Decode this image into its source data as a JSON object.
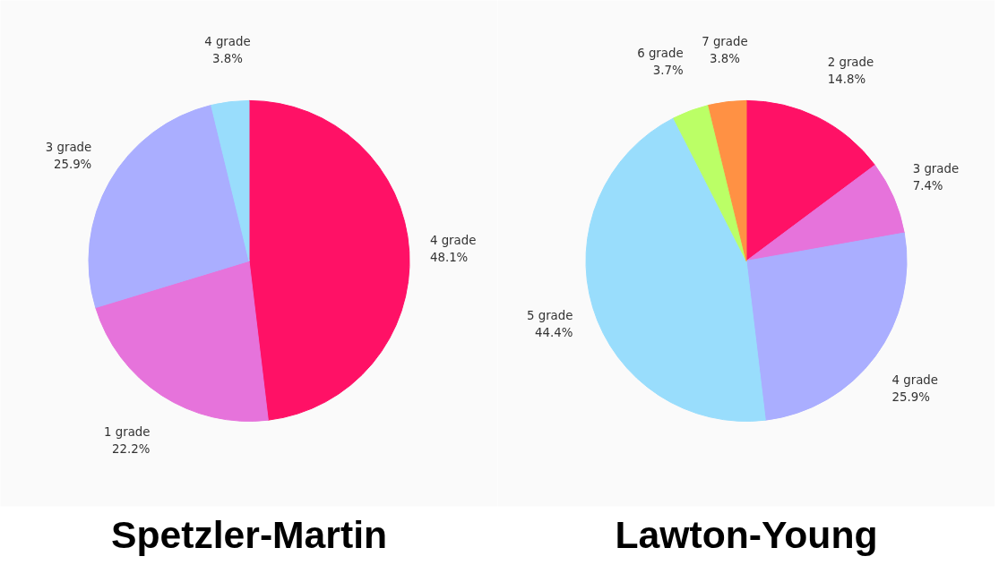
{
  "chart_data": [
    {
      "type": "pie",
      "title": "Spetzler-Martin",
      "categories": [
        "4 grade",
        "1 grade",
        "3 grade",
        "4 grade"
      ],
      "values": [
        48.1,
        22.2,
        25.9,
        3.8
      ],
      "colors": [
        "#ff1166",
        "#e673db",
        "#aaaeff",
        "#99ddfc"
      ],
      "value_labels": [
        "48.1%",
        "22.2%",
        "25.9%",
        "3.8%"
      ]
    },
    {
      "type": "pie",
      "title": "Lawton-Young",
      "categories": [
        "2 grade",
        "3 grade",
        "4 grade",
        "5 grade",
        "6 grade",
        "7 grade"
      ],
      "values": [
        14.8,
        7.4,
        25.9,
        44.4,
        3.7,
        3.8
      ],
      "colors": [
        "#ff1166",
        "#e673db",
        "#aaaeff",
        "#99ddfc",
        "#bbff66",
        "#ff9144"
      ],
      "value_labels": [
        "14.8%",
        "7.4%",
        "25.9%",
        "44.4%",
        "3.7%",
        "3.8%"
      ]
    }
  ]
}
